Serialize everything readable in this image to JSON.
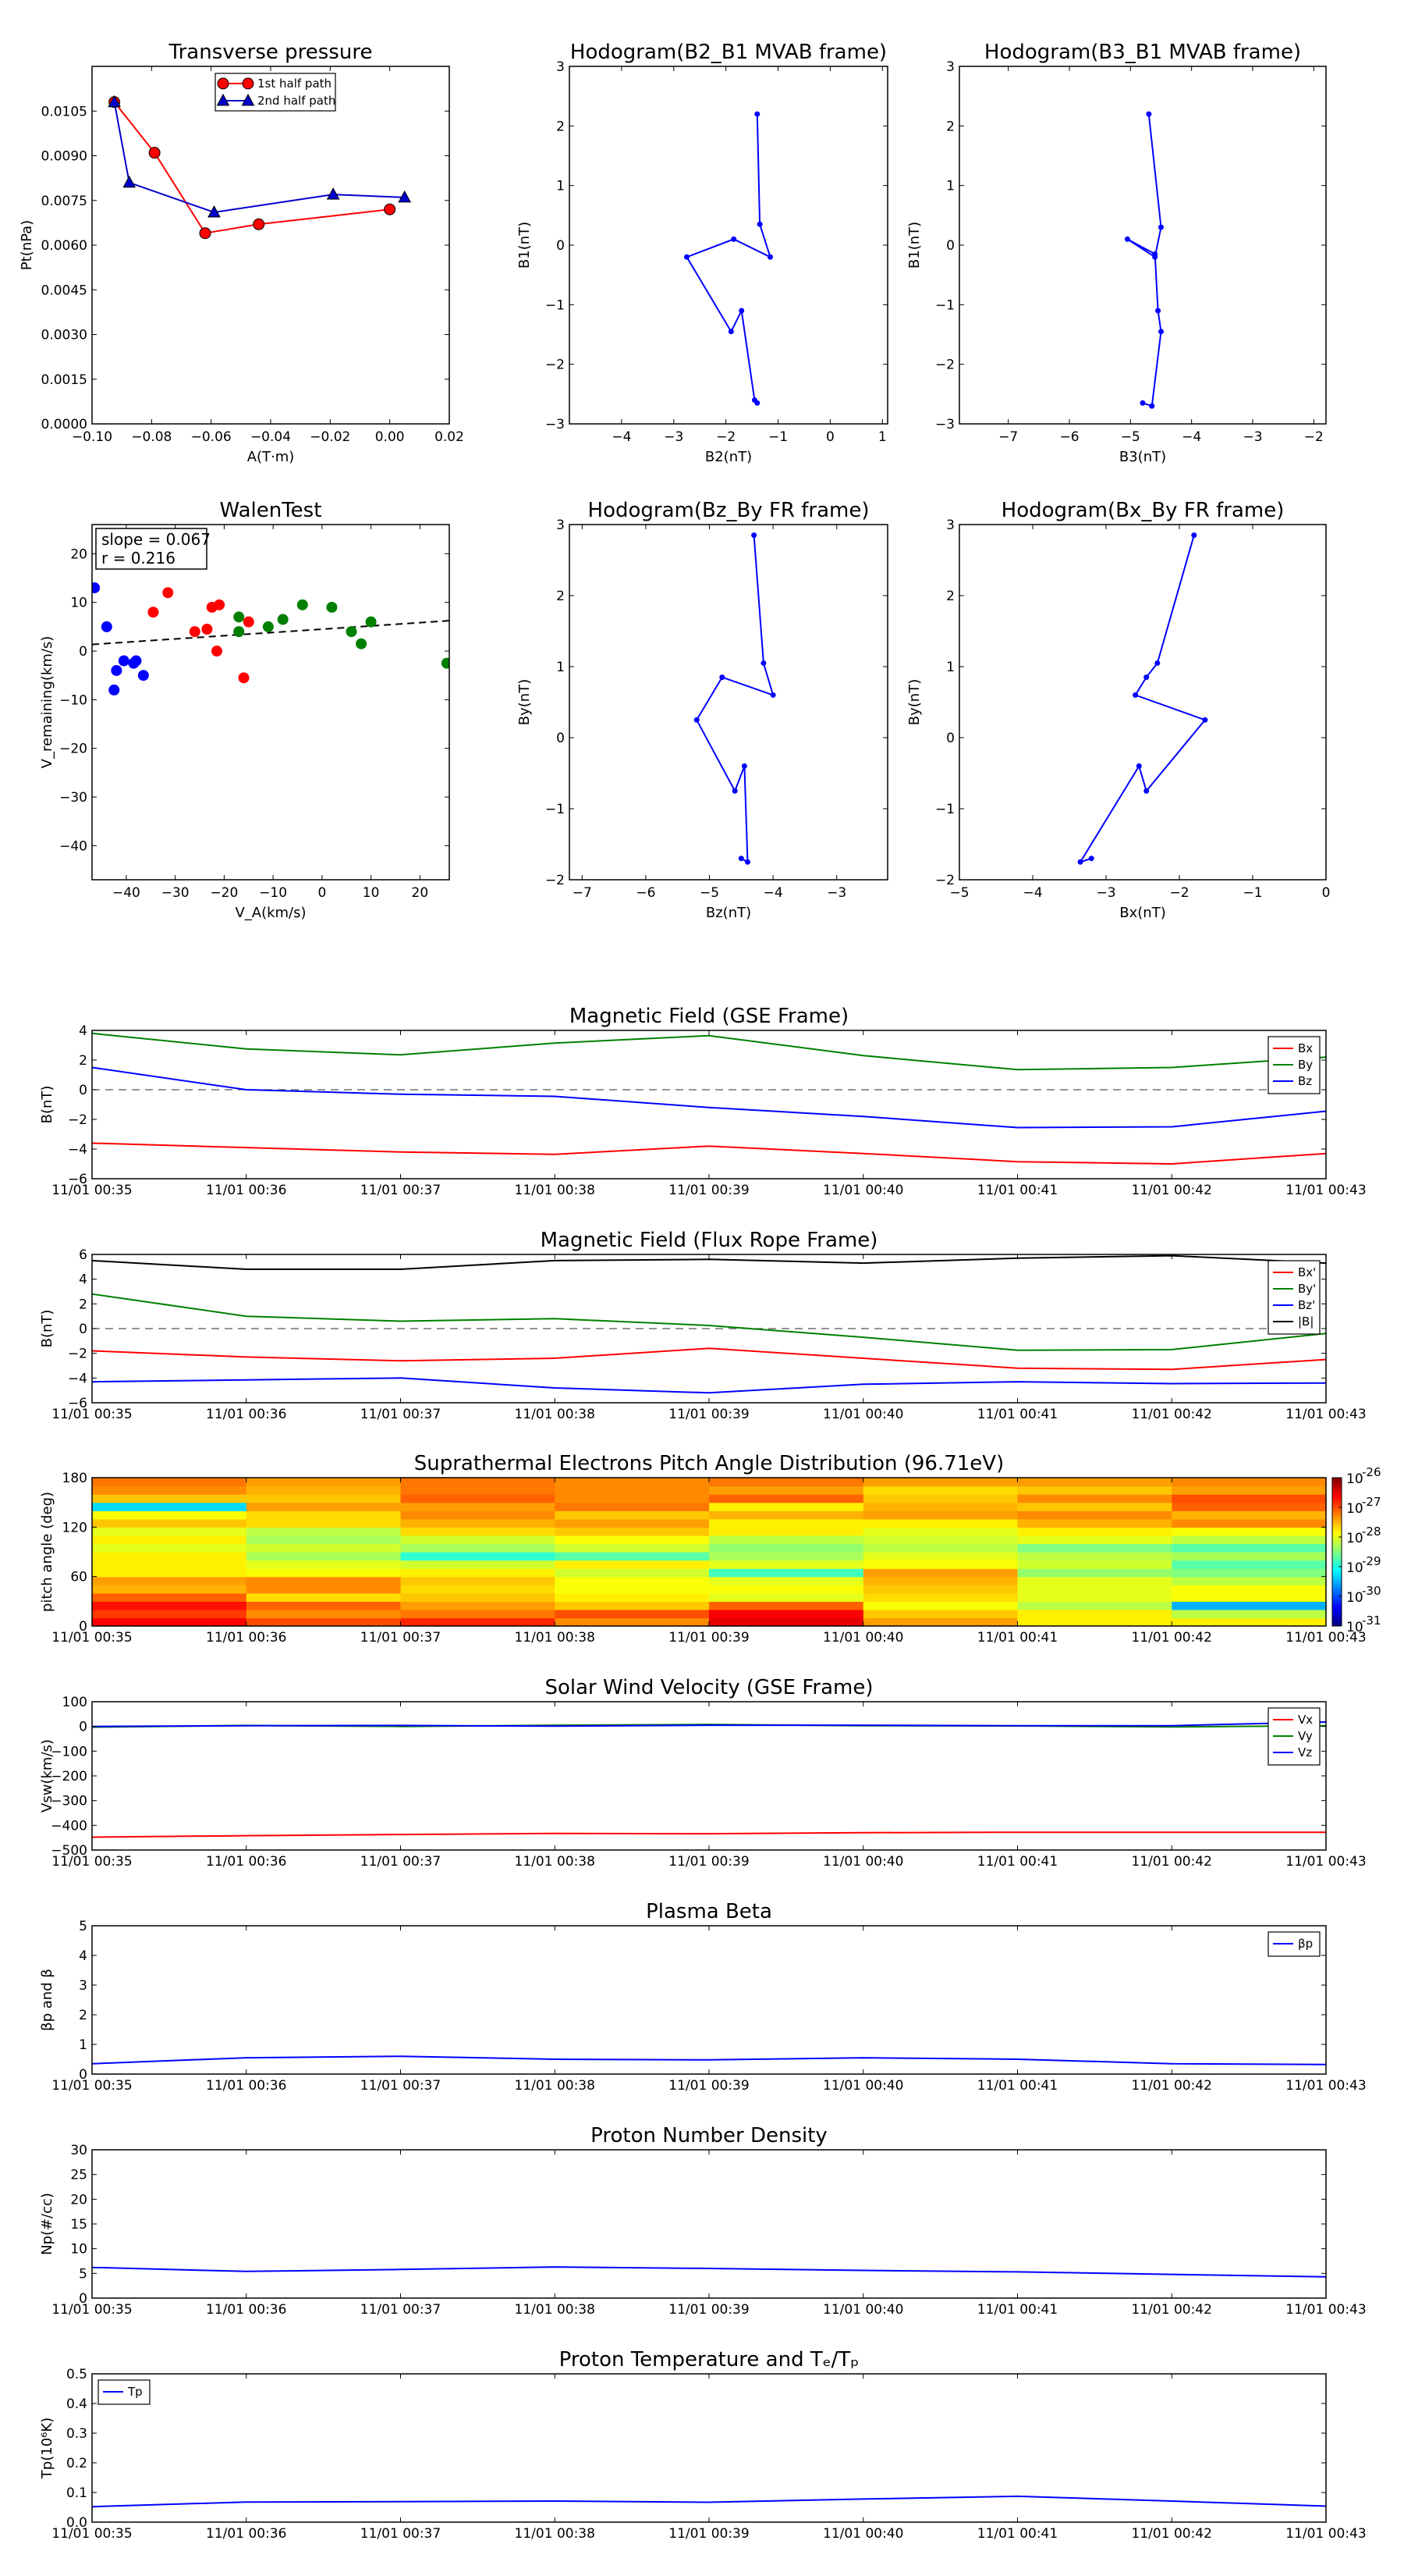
{
  "chart_data": [
    {
      "id": "tp",
      "type": "line",
      "title": "Transverse pressure",
      "xlabel": "A(T·m)",
      "ylabel": "Pt(nPa)",
      "xlim": [
        -0.1,
        0.02
      ],
      "ylim": [
        0,
        0.012
      ],
      "xticks": [
        -0.1,
        -0.08,
        -0.06,
        -0.04,
        -0.02,
        0.0,
        0.02
      ],
      "xtick_labels": [
        "−0.10",
        "−0.08",
        "−0.06",
        "−0.04",
        "−0.02",
        "0.00",
        "0.02"
      ],
      "yticks": [
        0,
        0.0015,
        0.003,
        0.0045,
        0.006,
        0.0075,
        0.009,
        0.0105
      ],
      "ytick_labels": [
        "0.0000",
        "0.0015",
        "0.0030",
        "0.0045",
        "0.0060",
        "0.0075",
        "0.0090",
        "0.0105"
      ],
      "legend": "upper-center",
      "series": [
        {
          "name": "1st half path",
          "color": "#ff0000",
          "marker": "circle",
          "x": [
            -0.0925,
            -0.079,
            -0.062,
            -0.044,
            0.0
          ],
          "y": [
            0.0108,
            0.0091,
            0.0064,
            0.0067,
            0.0072
          ]
        },
        {
          "name": "2nd half path",
          "color": "#0000cc",
          "marker": "triangle",
          "x": [
            -0.0925,
            -0.0875,
            -0.059,
            -0.019,
            0.005
          ],
          "y": [
            0.0108,
            0.0081,
            0.0071,
            0.0077,
            0.0076
          ]
        }
      ]
    },
    {
      "id": "h1",
      "type": "line",
      "title": "Hodogram(B2_B1 MVAB frame)",
      "xlabel": "B2(nT)",
      "ylabel": "B1(nT)",
      "xlim": [
        -5,
        1.1
      ],
      "ylim": [
        -3,
        3
      ],
      "xticks": [
        -4,
        -3,
        -2,
        -1,
        0,
        1
      ],
      "xtick_labels": [
        "−4",
        "−3",
        "−2",
        "−1",
        "0",
        "1"
      ],
      "yticks": [
        -3,
        -2,
        -1,
        0,
        1,
        2,
        3
      ],
      "ytick_labels": [
        "−3",
        "−2",
        "−1",
        "0",
        "1",
        "2",
        "3"
      ],
      "series": [
        {
          "color": "#0000ff",
          "marker": "dot",
          "x": [
            -1.4,
            -1.35,
            -1.15,
            -1.85,
            -2.75,
            -1.9,
            -1.7,
            -1.45,
            -1.4
          ],
          "y": [
            2.2,
            0.35,
            -0.2,
            0.1,
            -0.2,
            -1.45,
            -1.1,
            -2.6,
            -2.65
          ]
        }
      ]
    },
    {
      "id": "h2",
      "type": "line",
      "title": "Hodogram(B3_B1 MVAB frame)",
      "xlabel": "B3(nT)",
      "ylabel": "B1(nT)",
      "xlim": [
        -7.8,
        -1.8
      ],
      "ylim": [
        -3,
        3
      ],
      "xticks": [
        -7,
        -6,
        -5,
        -4,
        -3,
        -2
      ],
      "xtick_labels": [
        "−7",
        "−6",
        "−5",
        "−4",
        "−3",
        "−2"
      ],
      "yticks": [
        -3,
        -2,
        -1,
        0,
        1,
        2,
        3
      ],
      "ytick_labels": [
        "−3",
        "−2",
        "−1",
        "0",
        "1",
        "2",
        "3"
      ],
      "series": [
        {
          "color": "#0000ff",
          "marker": "dot",
          "x": [
            -4.7,
            -4.5,
            -4.6,
            -5.05,
            -4.6,
            -4.55,
            -4.5,
            -4.65,
            -4.8
          ],
          "y": [
            2.2,
            0.3,
            -0.2,
            0.1,
            -0.15,
            -1.1,
            -1.45,
            -2.7,
            -2.65
          ]
        }
      ]
    },
    {
      "id": "walen",
      "type": "scatter",
      "title": "WalenTest",
      "xlabel": "V_A(km/s)",
      "ylabel": "V_remaining(km/s)",
      "xlim": [
        -47,
        26
      ],
      "ylim": [
        -47,
        26
      ],
      "xticks": [
        -40,
        -30,
        -20,
        -10,
        0,
        10,
        20
      ],
      "xtick_labels": [
        "−40",
        "−30",
        "−20",
        "−10",
        "0",
        "10",
        "20"
      ],
      "yticks": [
        -40,
        -30,
        -20,
        -10,
        0,
        10,
        20
      ],
      "ytick_labels": [
        "−40",
        "−30",
        "−20",
        "−10",
        "0",
        "10",
        "20"
      ],
      "slope_text": "slope = 0.067",
      "r_text": "r = 0.216",
      "fit": {
        "slope": 0.067,
        "intercept": 4.5
      },
      "series": [
        {
          "color": "#0000ff",
          "x": [
            -46.5,
            -44,
            -42.5,
            -42,
            -40.5,
            -38.5,
            -38,
            -36.5
          ],
          "y": [
            13,
            5,
            -8,
            -4,
            -2,
            -2.5,
            -2,
            -5
          ]
        },
        {
          "color": "#ff0000",
          "x": [
            -34.5,
            -31.5,
            -26,
            -23.5,
            -22.5,
            -21,
            -21.5,
            -16,
            -15
          ],
          "y": [
            8,
            12,
            4,
            4.5,
            9,
            9.5,
            0,
            -5.5,
            6
          ]
        },
        {
          "color": "#008000",
          "x": [
            -17,
            -17,
            -11,
            -8,
            -4,
            2,
            6,
            8,
            10,
            25.5
          ],
          "y": [
            7,
            4,
            5,
            6.5,
            9.5,
            9,
            4,
            1.5,
            6,
            -2.5
          ]
        }
      ]
    },
    {
      "id": "h3",
      "type": "line",
      "title": "Hodogram(Bz_By FR frame)",
      "xlabel": "Bz(nT)",
      "ylabel": "By(nT)",
      "xlim": [
        -7.2,
        -2.2
      ],
      "ylim": [
        -2,
        3
      ],
      "xticks": [
        -7,
        -6,
        -5,
        -4,
        -3
      ],
      "xtick_labels": [
        "−7",
        "−6",
        "−5",
        "−4",
        "−3"
      ],
      "yticks": [
        -2,
        -1,
        0,
        1,
        2,
        3
      ],
      "ytick_labels": [
        "−2",
        "−1",
        "0",
        "1",
        "2",
        "3"
      ],
      "series": [
        {
          "color": "#0000ff",
          "marker": "dot",
          "x": [
            -4.3,
            -4.15,
            -4.0,
            -4.8,
            -5.2,
            -4.6,
            -4.45,
            -4.4,
            -4.5
          ],
          "y": [
            2.85,
            1.05,
            0.6,
            0.85,
            0.25,
            -0.75,
            -0.4,
            -1.75,
            -1.7
          ]
        }
      ]
    },
    {
      "id": "h4",
      "type": "line",
      "title": "Hodogram(Bx_By FR frame)",
      "xlabel": "Bx(nT)",
      "ylabel": "By(nT)",
      "xlim": [
        -5,
        0
      ],
      "ylim": [
        -2,
        3
      ],
      "xticks": [
        -5,
        -4,
        -3,
        -2,
        -1,
        0
      ],
      "xtick_labels": [
        "−5",
        "−4",
        "−3",
        "−2",
        "−1",
        "0"
      ],
      "yticks": [
        -2,
        -1,
        0,
        1,
        2,
        3
      ],
      "ytick_labels": [
        "−2",
        "−1",
        "0",
        "1",
        "2",
        "3"
      ],
      "series": [
        {
          "color": "#0000ff",
          "marker": "dot",
          "x": [
            -1.8,
            -2.3,
            -2.45,
            -2.6,
            -1.65,
            -2.45,
            -2.55,
            -3.35,
            -3.2
          ],
          "y": [
            2.85,
            1.05,
            0.85,
            0.6,
            0.25,
            -0.75,
            -0.4,
            -1.75,
            -1.7
          ]
        }
      ]
    },
    {
      "id": "bgse",
      "type": "line",
      "title": "Magnetic Field (GSE Frame)",
      "ylabel": "B(nT)",
      "x": [
        "11/01 00:35",
        "11/01 00:36",
        "11/01 00:37",
        "11/01 00:38",
        "11/01 00:39",
        "11/01 00:40",
        "11/01 00:41",
        "11/01 00:42",
        "11/01 00:43"
      ],
      "ylim": [
        -6,
        4
      ],
      "yticks": [
        -6,
        -4,
        -2,
        0,
        2,
        4
      ],
      "ytick_labels": [
        "−6",
        "−4",
        "−2",
        "0",
        "2",
        "4"
      ],
      "zero_line": true,
      "legend": "top-right",
      "series": [
        {
          "name": "Bx",
          "color": "#ff0000",
          "values": [
            -3.6,
            -3.9,
            -4.2,
            -4.35,
            -3.8,
            -4.3,
            -4.85,
            -5.0,
            -4.3
          ]
        },
        {
          "name": "By",
          "color": "#008000",
          "values": [
            3.8,
            2.75,
            2.35,
            3.15,
            3.65,
            2.3,
            1.35,
            1.5,
            2.2
          ]
        },
        {
          "name": "Bz",
          "color": "#0000ff",
          "values": [
            1.5,
            0.0,
            -0.3,
            -0.45,
            -1.2,
            -1.8,
            -2.55,
            -2.5,
            -1.45
          ]
        }
      ]
    },
    {
      "id": "bfr",
      "type": "line",
      "title": "Magnetic Field (Flux Rope Frame)",
      "ylabel": "B(nT)",
      "x": [
        "11/01 00:35",
        "11/01 00:36",
        "11/01 00:37",
        "11/01 00:38",
        "11/01 00:39",
        "11/01 00:40",
        "11/01 00:41",
        "11/01 00:42",
        "11/01 00:43"
      ],
      "ylim": [
        -6,
        6
      ],
      "yticks": [
        -6,
        -4,
        -2,
        0,
        2,
        4,
        6
      ],
      "ytick_labels": [
        "−6",
        "−4",
        "−2",
        "0",
        "2",
        "4",
        "6"
      ],
      "zero_line": true,
      "legend": "top-right",
      "series": [
        {
          "name": "Bx'",
          "color": "#ff0000",
          "values": [
            -1.8,
            -2.3,
            -2.6,
            -2.4,
            -1.6,
            -2.4,
            -3.2,
            -3.3,
            -2.5
          ]
        },
        {
          "name": "By'",
          "color": "#008000",
          "values": [
            2.8,
            1.0,
            0.6,
            0.8,
            0.25,
            -0.7,
            -1.75,
            -1.7,
            -0.4
          ]
        },
        {
          "name": "Bz'",
          "color": "#0000ff",
          "values": [
            -4.3,
            -4.15,
            -4.0,
            -4.8,
            -5.2,
            -4.5,
            -4.3,
            -4.45,
            -4.4
          ]
        },
        {
          "name": "|B|",
          "color": "#000000",
          "values": [
            5.5,
            4.8,
            4.8,
            5.5,
            5.6,
            5.3,
            5.7,
            5.9,
            5.3
          ]
        }
      ]
    },
    {
      "id": "pad",
      "type": "heatmap",
      "title": "Suprathermal Electrons Pitch Angle Distribution (96.71eV)",
      "ylabel": "pitch angle (deg)",
      "x": [
        "11/01 00:35",
        "11/01 00:36",
        "11/01 00:37",
        "11/01 00:38",
        "11/01 00:39",
        "11/01 00:40",
        "11/01 00:41",
        "11/01 00:42",
        "11/01 00:43"
      ],
      "ylim": [
        0,
        180
      ],
      "yticks": [
        0,
        60,
        120,
        180
      ],
      "ytick_labels": [
        "0",
        "60",
        "120",
        "180"
      ],
      "colorbar_ticks": [
        "10",
        "10",
        "10",
        "10",
        "10",
        "10"
      ],
      "colorbar_exponents": [
        "-26",
        "-27",
        "-28",
        "-29",
        "-30",
        "-31"
      ],
      "colors": [
        "#000080",
        "#0000ff",
        "#0080ff",
        "#00ffff",
        "#80ff80",
        "#ffff00",
        "#ff8000",
        "#ff0000",
        "#800000"
      ],
      "vmin_exp": -31,
      "vmax_exp": -26,
      "bins": [
        [
          -26.6,
          -27.0,
          -26.8,
          -27.3,
          -26.5,
          -27.4,
          -27.8,
          -27.8
        ],
        [
          -26.9,
          -27.3,
          -27.2,
          -27.0,
          -26.6,
          -27.6,
          -27.8,
          -28.2
        ],
        [
          -26.7,
          -27.1,
          -27.4,
          -27.6,
          -27.1,
          -27.9,
          -28.2,
          -29.5
        ],
        [
          -27.1,
          -27.7,
          -27.6,
          -27.8,
          -28.0,
          -27.7,
          -28.0,
          -27.9
        ],
        [
          -27.5,
          -27.3,
          -27.7,
          -27.9,
          -27.9,
          -27.6,
          -28.0,
          -27.9
        ],
        [
          -27.4,
          -27.3,
          -27.6,
          -27.9,
          -28.0,
          -27.5,
          -28.0,
          -28.2
        ],
        [
          -27.8,
          -27.9,
          -27.8,
          -28.1,
          -28.8,
          -27.4,
          -28.4,
          -28.5
        ],
        [
          -27.8,
          -28.0,
          -28.1,
          -27.8,
          -28.0,
          -27.9,
          -28.1,
          -28.7
        ],
        [
          -27.8,
          -28.3,
          -28.9,
          -28.7,
          -28.3,
          -28.0,
          -28.2,
          -28.3
        ],
        [
          -28.0,
          -28.1,
          -28.3,
          -28.1,
          -28.4,
          -28.2,
          -28.5,
          -28.7
        ],
        [
          -27.8,
          -28.3,
          -28.1,
          -27.9,
          -28.2,
          -28.1,
          -28.0,
          -28.2
        ],
        [
          -28.0,
          -28.2,
          -27.7,
          -27.6,
          -27.8,
          -28.0,
          -27.8,
          -27.9
        ],
        [
          -27.6,
          -27.7,
          -27.5,
          -27.4,
          -27.8,
          -27.8,
          -27.5,
          -27.3
        ],
        [
          -27.9,
          -27.7,
          -27.3,
          -27.6,
          -27.5,
          -27.4,
          -27.3,
          -27.5
        ],
        [
          -29.3,
          -27.4,
          -27.4,
          -27.2,
          -27.8,
          -27.5,
          -27.6,
          -27.1
        ],
        [
          -27.6,
          -27.6,
          -27.1,
          -27.3,
          -27.1,
          -27.6,
          -27.3,
          -27.0
        ],
        [
          -27.3,
          -27.5,
          -27.2,
          -27.3,
          -27.4,
          -27.7,
          -27.6,
          -27.4
        ],
        [
          -27.2,
          -27.4,
          -27.2,
          -27.3,
          -27.2,
          -27.4,
          -27.4,
          -27.3
        ]
      ]
    },
    {
      "id": "vsw",
      "type": "line",
      "title": "Solar Wind Velocity (GSE Frame)",
      "ylabel": "Vsw(km/s)",
      "x": [
        "11/01 00:35",
        "11/01 00:36",
        "11/01 00:37",
        "11/01 00:38",
        "11/01 00:39",
        "11/01 00:40",
        "11/01 00:41",
        "11/01 00:42",
        "11/01 00:43"
      ],
      "ylim": [
        -500,
        100
      ],
      "yticks": [
        -500,
        -400,
        -300,
        -200,
        -100,
        0,
        100
      ],
      "ytick_labels": [
        "−500",
        "−400",
        "−300",
        "−200",
        "−100",
        "0",
        "100"
      ],
      "legend": "top-right",
      "series": [
        {
          "name": "Vx",
          "color": "#ff0000",
          "values": [
            -448,
            -442,
            -437,
            -433,
            -434,
            -430,
            -428,
            -428,
            -428
          ]
        },
        {
          "name": "Vy",
          "color": "#008000",
          "values": [
            -3,
            4,
            0,
            5,
            8,
            3,
            2,
            -2,
            3
          ]
        },
        {
          "name": "Vz",
          "color": "#0000ff",
          "values": [
            0,
            3,
            4,
            1,
            5,
            5,
            3,
            3,
            18
          ]
        }
      ]
    },
    {
      "id": "beta",
      "type": "line",
      "title": "Plasma Beta",
      "ylabel": "βp and β",
      "x": [
        "11/01 00:35",
        "11/01 00:36",
        "11/01 00:37",
        "11/01 00:38",
        "11/01 00:39",
        "11/01 00:40",
        "11/01 00:41",
        "11/01 00:42",
        "11/01 00:43"
      ],
      "ylim": [
        0,
        5
      ],
      "yticks": [
        0,
        1,
        2,
        3,
        4,
        5
      ],
      "ytick_labels": [
        "0",
        "1",
        "2",
        "3",
        "4",
        "5"
      ],
      "legend": "top-right",
      "series": [
        {
          "name": "βp",
          "color": "#0000ff",
          "values": [
            0.35,
            0.55,
            0.6,
            0.5,
            0.48,
            0.55,
            0.5,
            0.35,
            0.32
          ]
        }
      ]
    },
    {
      "id": "np",
      "type": "line",
      "title": "Proton Number Density",
      "ylabel": "Np(#/cc)",
      "x": [
        "11/01 00:35",
        "11/01 00:36",
        "11/01 00:37",
        "11/01 00:38",
        "11/01 00:39",
        "11/01 00:40",
        "11/01 00:41",
        "11/01 00:42",
        "11/01 00:43"
      ],
      "ylim": [
        0,
        30
      ],
      "yticks": [
        0,
        5,
        10,
        15,
        20,
        25,
        30
      ],
      "ytick_labels": [
        "0",
        "5",
        "10",
        "15",
        "20",
        "25",
        "30"
      ],
      "series": [
        {
          "color": "#0000ff",
          "values": [
            6.2,
            5.4,
            5.8,
            6.3,
            6.0,
            5.6,
            5.3,
            4.8,
            4.3
          ]
        }
      ]
    },
    {
      "id": "tpr",
      "type": "line",
      "title": "Proton Temperature and Tₑ/Tₚ",
      "ylabel": "Tp(10⁶K)",
      "x": [
        "11/01 00:35",
        "11/01 00:36",
        "11/01 00:37",
        "11/01 00:38",
        "11/01 00:39",
        "11/01 00:40",
        "11/01 00:41",
        "11/01 00:42",
        "11/01 00:43"
      ],
      "ylim": [
        0,
        0.5
      ],
      "yticks": [
        0,
        0.1,
        0.2,
        0.3,
        0.4,
        0.5
      ],
      "ytick_labels": [
        "0.0",
        "0.1",
        "0.2",
        "0.3",
        "0.4",
        "0.5"
      ],
      "legend": "top-left",
      "series": [
        {
          "name": "Tp",
          "color": "#0000ff",
          "values": [
            0.052,
            0.068,
            0.069,
            0.071,
            0.067,
            0.078,
            0.087,
            0.071,
            0.054
          ]
        }
      ]
    }
  ]
}
